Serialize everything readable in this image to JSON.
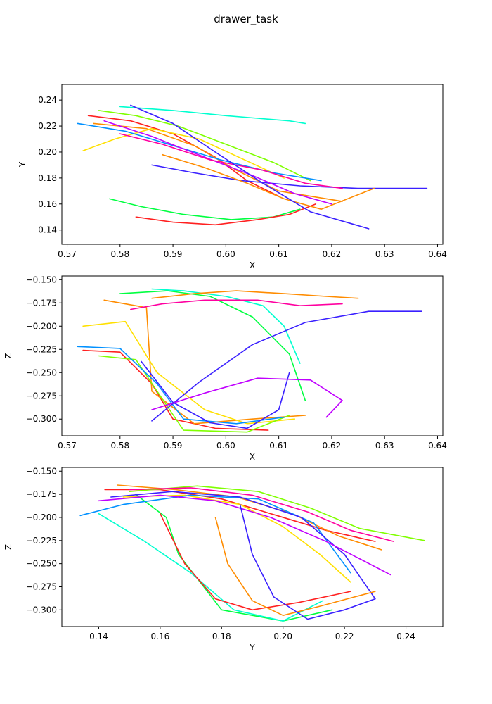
{
  "figure": {
    "title": "drawer_task"
  },
  "chart_data": [
    {
      "type": "line",
      "title": "",
      "xlabel": "X",
      "ylabel": "Y",
      "xlim": [
        0.569,
        0.641
      ],
      "ylim": [
        0.129,
        0.252
      ],
      "xticks": [
        0.57,
        0.58,
        0.59,
        0.6,
        0.61,
        0.62,
        0.63,
        0.64
      ],
      "xtick_labels": [
        "0.57",
        "0.58",
        "0.59",
        "0.60",
        "0.61",
        "0.62",
        "0.63",
        "0.64"
      ],
      "yticks": [
        0.14,
        0.16,
        0.18,
        0.2,
        0.22,
        0.24
      ],
      "ytick_labels": [
        "0.14",
        "0.16",
        "0.18",
        "0.20",
        "0.22",
        "0.24"
      ],
      "grid": false,
      "legend": "none",
      "series_count": 200,
      "colormap": "hsv",
      "series": [
        {
          "color": "#ff2020",
          "x": [
            0.574,
            0.582,
            0.59,
            0.598,
            0.604,
            0.61
          ],
          "y": [
            0.228,
            0.224,
            0.214,
            0.196,
            0.178,
            0.166
          ]
        },
        {
          "color": "#ff8c00",
          "x": [
            0.575,
            0.585,
            0.594,
            0.602,
            0.61,
            0.622
          ],
          "y": [
            0.222,
            0.218,
            0.205,
            0.186,
            0.17,
            0.162
          ]
        },
        {
          "color": "#ffe000",
          "x": [
            0.573,
            0.579,
            0.586,
            0.595,
            0.603,
            0.611
          ],
          "y": [
            0.201,
            0.21,
            0.218,
            0.21,
            0.195,
            0.18
          ]
        },
        {
          "color": "#80ff00",
          "x": [
            0.576,
            0.583,
            0.591,
            0.6,
            0.609,
            0.616
          ],
          "y": [
            0.232,
            0.228,
            0.22,
            0.206,
            0.192,
            0.178
          ]
        },
        {
          "color": "#00ff40",
          "x": [
            0.578,
            0.584,
            0.592,
            0.601,
            0.609,
            0.614
          ],
          "y": [
            0.164,
            0.158,
            0.152,
            0.148,
            0.15,
            0.156
          ]
        },
        {
          "color": "#00ffd0",
          "x": [
            0.58,
            0.59,
            0.6,
            0.606,
            0.612,
            0.615
          ],
          "y": [
            0.235,
            0.232,
            0.228,
            0.226,
            0.224,
            0.222
          ]
        },
        {
          "color": "#0090ff",
          "x": [
            0.572,
            0.581,
            0.59,
            0.599,
            0.609,
            0.618
          ],
          "y": [
            0.222,
            0.216,
            0.205,
            0.194,
            0.184,
            0.178
          ]
        },
        {
          "color": "#3a20ff",
          "x": [
            0.586,
            0.594,
            0.603,
            0.614,
            0.625,
            0.638
          ],
          "y": [
            0.19,
            0.184,
            0.178,
            0.174,
            0.172,
            0.172
          ]
        },
        {
          "color": "#c000ff",
          "x": [
            0.577,
            0.586,
            0.596,
            0.605,
            0.613,
            0.62
          ],
          "y": [
            0.224,
            0.212,
            0.196,
            0.182,
            0.168,
            0.16
          ]
        },
        {
          "color": "#ff00a0",
          "x": [
            0.58,
            0.588,
            0.597,
            0.607,
            0.615,
            0.622
          ],
          "y": [
            0.214,
            0.206,
            0.194,
            0.186,
            0.176,
            0.172
          ]
        },
        {
          "color": "#ff2020",
          "x": [
            0.583,
            0.59,
            0.598,
            0.606,
            0.612,
            0.617
          ],
          "y": [
            0.15,
            0.146,
            0.144,
            0.148,
            0.152,
            0.16
          ]
        },
        {
          "color": "#ff8c00",
          "x": [
            0.588,
            0.596,
            0.604,
            0.611,
            0.618,
            0.628
          ],
          "y": [
            0.198,
            0.188,
            0.176,
            0.164,
            0.156,
            0.172
          ]
        },
        {
          "color": "#3a20ff",
          "x": [
            0.582,
            0.59,
            0.598,
            0.607,
            0.616,
            0.627
          ],
          "y": [
            0.236,
            0.222,
            0.2,
            0.176,
            0.154,
            0.141
          ]
        }
      ]
    },
    {
      "type": "line",
      "title": "",
      "xlabel": "X",
      "ylabel": "Z",
      "xlim": [
        0.569,
        0.641
      ],
      "ylim": [
        -0.318,
        -0.146
      ],
      "xticks": [
        0.57,
        0.58,
        0.59,
        0.6,
        0.61,
        0.62,
        0.63,
        0.64
      ],
      "xtick_labels": [
        "0.57",
        "0.58",
        "0.59",
        "0.60",
        "0.61",
        "0.62",
        "0.63",
        "0.64"
      ],
      "yticks": [
        -0.3,
        -0.275,
        -0.25,
        -0.225,
        -0.2,
        -0.175,
        -0.15
      ],
      "ytick_labels": [
        "−0.300",
        "−0.275",
        "−0.250",
        "−0.225",
        "−0.200",
        "−0.175",
        "−0.150"
      ],
      "grid": false,
      "legend": "none",
      "series_count": 200,
      "colormap": "hsv",
      "series": [
        {
          "color": "#ff2020",
          "x": [
            0.573,
            0.58,
            0.586,
            0.59,
            0.598,
            0.608
          ],
          "y": [
            -0.226,
            -0.228,
            -0.262,
            -0.3,
            -0.31,
            -0.312
          ]
        },
        {
          "color": "#ff8c00",
          "x": [
            0.577,
            0.585,
            0.586,
            0.594,
            0.605,
            0.615
          ],
          "y": [
            -0.172,
            -0.18,
            -0.27,
            -0.305,
            -0.3,
            -0.296
          ]
        },
        {
          "color": "#ffe000",
          "x": [
            0.573,
            0.581,
            0.587,
            0.596,
            0.604,
            0.613
          ],
          "y": [
            -0.2,
            -0.195,
            -0.25,
            -0.29,
            -0.305,
            -0.3
          ]
        },
        {
          "color": "#80ff00",
          "x": [
            0.576,
            0.583,
            0.587,
            0.592,
            0.604,
            0.612
          ],
          "y": [
            -0.232,
            -0.236,
            -0.27,
            -0.312,
            -0.314,
            -0.296
          ]
        },
        {
          "color": "#00ff40",
          "x": [
            0.58,
            0.589,
            0.597,
            0.605,
            0.612,
            0.615
          ],
          "y": [
            -0.165,
            -0.162,
            -0.168,
            -0.19,
            -0.23,
            -0.28
          ]
        },
        {
          "color": "#00ffd0",
          "x": [
            0.586,
            0.592,
            0.6,
            0.607,
            0.611,
            0.614
          ],
          "y": [
            -0.16,
            -0.162,
            -0.168,
            -0.178,
            -0.2,
            -0.24
          ]
        },
        {
          "color": "#0090ff",
          "x": [
            0.572,
            0.58,
            0.587,
            0.592,
            0.602,
            0.611
          ],
          "y": [
            -0.222,
            -0.224,
            -0.262,
            -0.3,
            -0.305,
            -0.298
          ]
        },
        {
          "color": "#3a20ff",
          "x": [
            0.586,
            0.595,
            0.605,
            0.615,
            0.627,
            0.637
          ],
          "y": [
            -0.302,
            -0.26,
            -0.22,
            -0.196,
            -0.184,
            -0.184
          ]
        },
        {
          "color": "#c000ff",
          "x": [
            0.586,
            0.596,
            0.606,
            0.616,
            0.622,
            0.619
          ],
          "y": [
            -0.29,
            -0.272,
            -0.256,
            -0.258,
            -0.28,
            -0.298
          ]
        },
        {
          "color": "#ff00a0",
          "x": [
            0.582,
            0.588,
            0.596,
            0.606,
            0.614,
            0.622
          ],
          "y": [
            -0.182,
            -0.176,
            -0.172,
            -0.172,
            -0.178,
            -0.176
          ]
        },
        {
          "color": "#ff8c00",
          "x": [
            0.586,
            0.594,
            0.602,
            0.611,
            0.619,
            0.625
          ],
          "y": [
            -0.17,
            -0.165,
            -0.162,
            -0.165,
            -0.168,
            -0.17
          ]
        },
        {
          "color": "#3a20ff",
          "x": [
            0.584,
            0.59,
            0.597,
            0.604,
            0.61,
            0.612
          ],
          "y": [
            -0.238,
            -0.282,
            -0.304,
            -0.31,
            -0.29,
            -0.25
          ]
        }
      ]
    },
    {
      "type": "line",
      "title": "",
      "xlabel": "Y",
      "ylabel": "Z",
      "xlim": [
        0.128,
        0.252
      ],
      "ylim": [
        -0.318,
        -0.146
      ],
      "xticks": [
        0.14,
        0.16,
        0.18,
        0.2,
        0.22,
        0.24
      ],
      "xtick_labels": [
        "0.14",
        "0.16",
        "0.18",
        "0.20",
        "0.22",
        "0.24"
      ],
      "yticks": [
        -0.3,
        -0.275,
        -0.25,
        -0.225,
        -0.2,
        -0.175,
        -0.15
      ],
      "ytick_labels": [
        "−0.300",
        "−0.275",
        "−0.250",
        "−0.225",
        "−0.200",
        "−0.175",
        "−0.150"
      ],
      "grid": false,
      "legend": "none",
      "series_count": 200,
      "colormap": "hsv",
      "series": [
        {
          "color": "#ff2020",
          "x": [
            0.142,
            0.16,
            0.18,
            0.198,
            0.214,
            0.23
          ],
          "y": [
            -0.17,
            -0.17,
            -0.18,
            -0.198,
            -0.214,
            -0.226
          ]
        },
        {
          "color": "#ff8c00",
          "x": [
            0.146,
            0.165,
            0.185,
            0.203,
            0.218,
            0.232
          ],
          "y": [
            -0.165,
            -0.17,
            -0.178,
            -0.196,
            -0.22,
            -0.235
          ]
        },
        {
          "color": "#ffe000",
          "x": [
            0.148,
            0.168,
            0.186,
            0.2,
            0.212,
            0.222
          ],
          "y": [
            -0.178,
            -0.176,
            -0.186,
            -0.21,
            -0.24,
            -0.27
          ]
        },
        {
          "color": "#80ff00",
          "x": [
            0.15,
            0.172,
            0.192,
            0.209,
            0.225,
            0.246
          ],
          "y": [
            -0.172,
            -0.166,
            -0.172,
            -0.19,
            -0.212,
            -0.225
          ]
        },
        {
          "color": "#00ff40",
          "x": [
            0.152,
            0.162,
            0.166,
            0.18,
            0.2,
            0.216
          ],
          "y": [
            -0.175,
            -0.2,
            -0.24,
            -0.3,
            -0.312,
            -0.3
          ]
        },
        {
          "color": "#00ffd0",
          "x": [
            0.14,
            0.155,
            0.17,
            0.184,
            0.2,
            0.213
          ],
          "y": [
            -0.196,
            -0.226,
            -0.26,
            -0.3,
            -0.312,
            -0.29
          ]
        },
        {
          "color": "#0090ff",
          "x": [
            0.134,
            0.148,
            0.17,
            0.192,
            0.21,
            0.222
          ],
          "y": [
            -0.198,
            -0.186,
            -0.176,
            -0.18,
            -0.206,
            -0.26
          ]
        },
        {
          "color": "#3a20ff",
          "x": [
            0.144,
            0.164,
            0.186,
            0.206,
            0.22,
            0.23
          ],
          "y": [
            -0.178,
            -0.172,
            -0.178,
            -0.2,
            -0.24,
            -0.288
          ]
        },
        {
          "color": "#c000ff",
          "x": [
            0.14,
            0.16,
            0.178,
            0.196,
            0.214,
            0.235
          ],
          "y": [
            -0.182,
            -0.176,
            -0.182,
            -0.2,
            -0.226,
            -0.262
          ]
        },
        {
          "color": "#ff00a0",
          "x": [
            0.15,
            0.17,
            0.19,
            0.208,
            0.222,
            0.236
          ],
          "y": [
            -0.17,
            -0.168,
            -0.176,
            -0.194,
            -0.214,
            -0.226
          ]
        },
        {
          "color": "#ff2020",
          "x": [
            0.16,
            0.168,
            0.178,
            0.19,
            0.205,
            0.222
          ],
          "y": [
            -0.196,
            -0.25,
            -0.288,
            -0.3,
            -0.292,
            -0.28
          ]
        },
        {
          "color": "#ff8c00",
          "x": [
            0.178,
            0.182,
            0.19,
            0.2,
            0.212,
            0.23
          ],
          "y": [
            -0.2,
            -0.25,
            -0.29,
            -0.306,
            -0.296,
            -0.28
          ]
        },
        {
          "color": "#3a20ff",
          "x": [
            0.186,
            0.19,
            0.197,
            0.208,
            0.22,
            0.23
          ],
          "y": [
            -0.186,
            -0.24,
            -0.286,
            -0.31,
            -0.3,
            -0.288
          ]
        }
      ]
    }
  ]
}
